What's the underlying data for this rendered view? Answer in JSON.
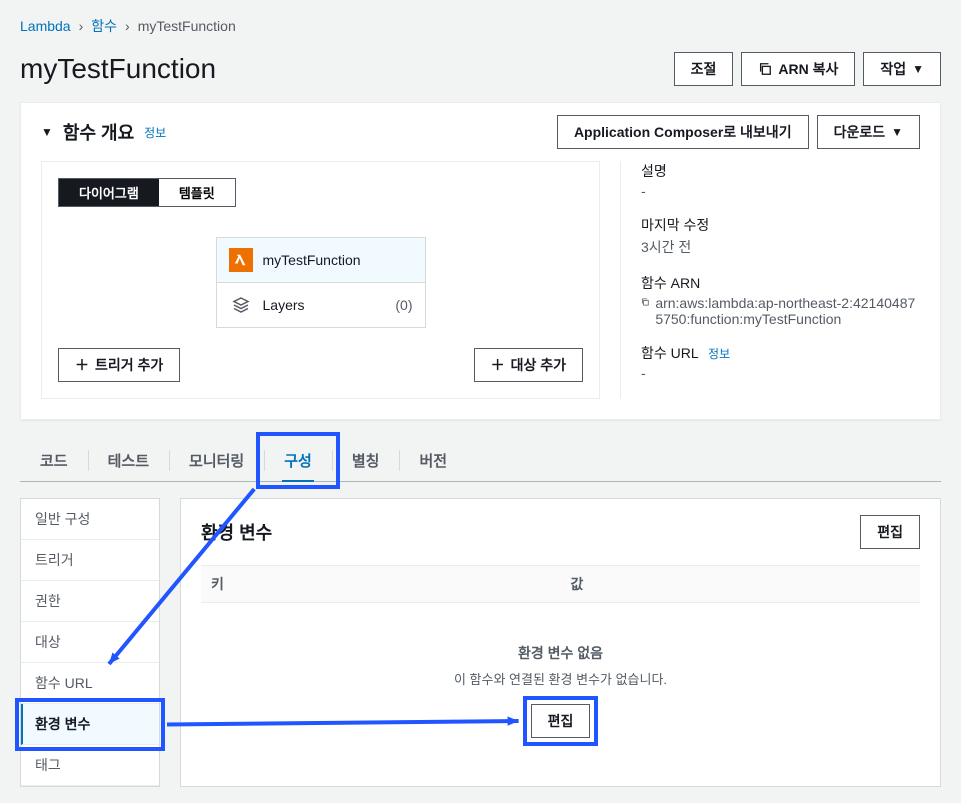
{
  "breadcrumb": {
    "root": "Lambda",
    "mid": "함수",
    "current": "myTestFunction"
  },
  "header": {
    "title": "myTestFunction",
    "throttle": "조절",
    "copy_arn": "ARN 복사",
    "actions": "작업"
  },
  "overview": {
    "title": "함수 개요",
    "info": "정보",
    "export_composer": "Application Composer로 내보내기",
    "download": "다운로드",
    "toggle_diagram": "다이어그램",
    "toggle_template": "템플릿",
    "fn_name": "myTestFunction",
    "layers_label": "Layers",
    "layers_count": "(0)",
    "add_trigger": "트리거 추가",
    "add_destination": "대상 추가",
    "meta": {
      "desc_label": "설명",
      "desc_value": "-",
      "modified_label": "마지막 수정",
      "modified_value": "3시간 전",
      "arn_label": "함수 ARN",
      "arn_value": "arn:aws:lambda:ap-northeast-2:421404875750:function:myTestFunction",
      "url_label": "함수 URL",
      "url_info": "정보",
      "url_value": "-"
    }
  },
  "tabs": {
    "code": "코드",
    "test": "테스트",
    "monitoring": "모니터링",
    "config": "구성",
    "aliases": "별칭",
    "versions": "버전"
  },
  "sidebar": {
    "general": "일반 구성",
    "triggers": "트리거",
    "permissions": "권한",
    "destinations": "대상",
    "fn_url": "함수 URL",
    "env_vars": "환경 변수",
    "tags": "태그"
  },
  "env_panel": {
    "title": "환경 변수",
    "edit": "편집",
    "col_key": "키",
    "col_value": "값",
    "empty_title": "환경 변수 없음",
    "empty_desc": "이 함수와 연결된 환경 변수가 없습니다.",
    "empty_action": "편집"
  },
  "colors": {
    "link": "#0073bb",
    "highlight": "#2155ff",
    "lambda_orange": "#ed7100"
  }
}
